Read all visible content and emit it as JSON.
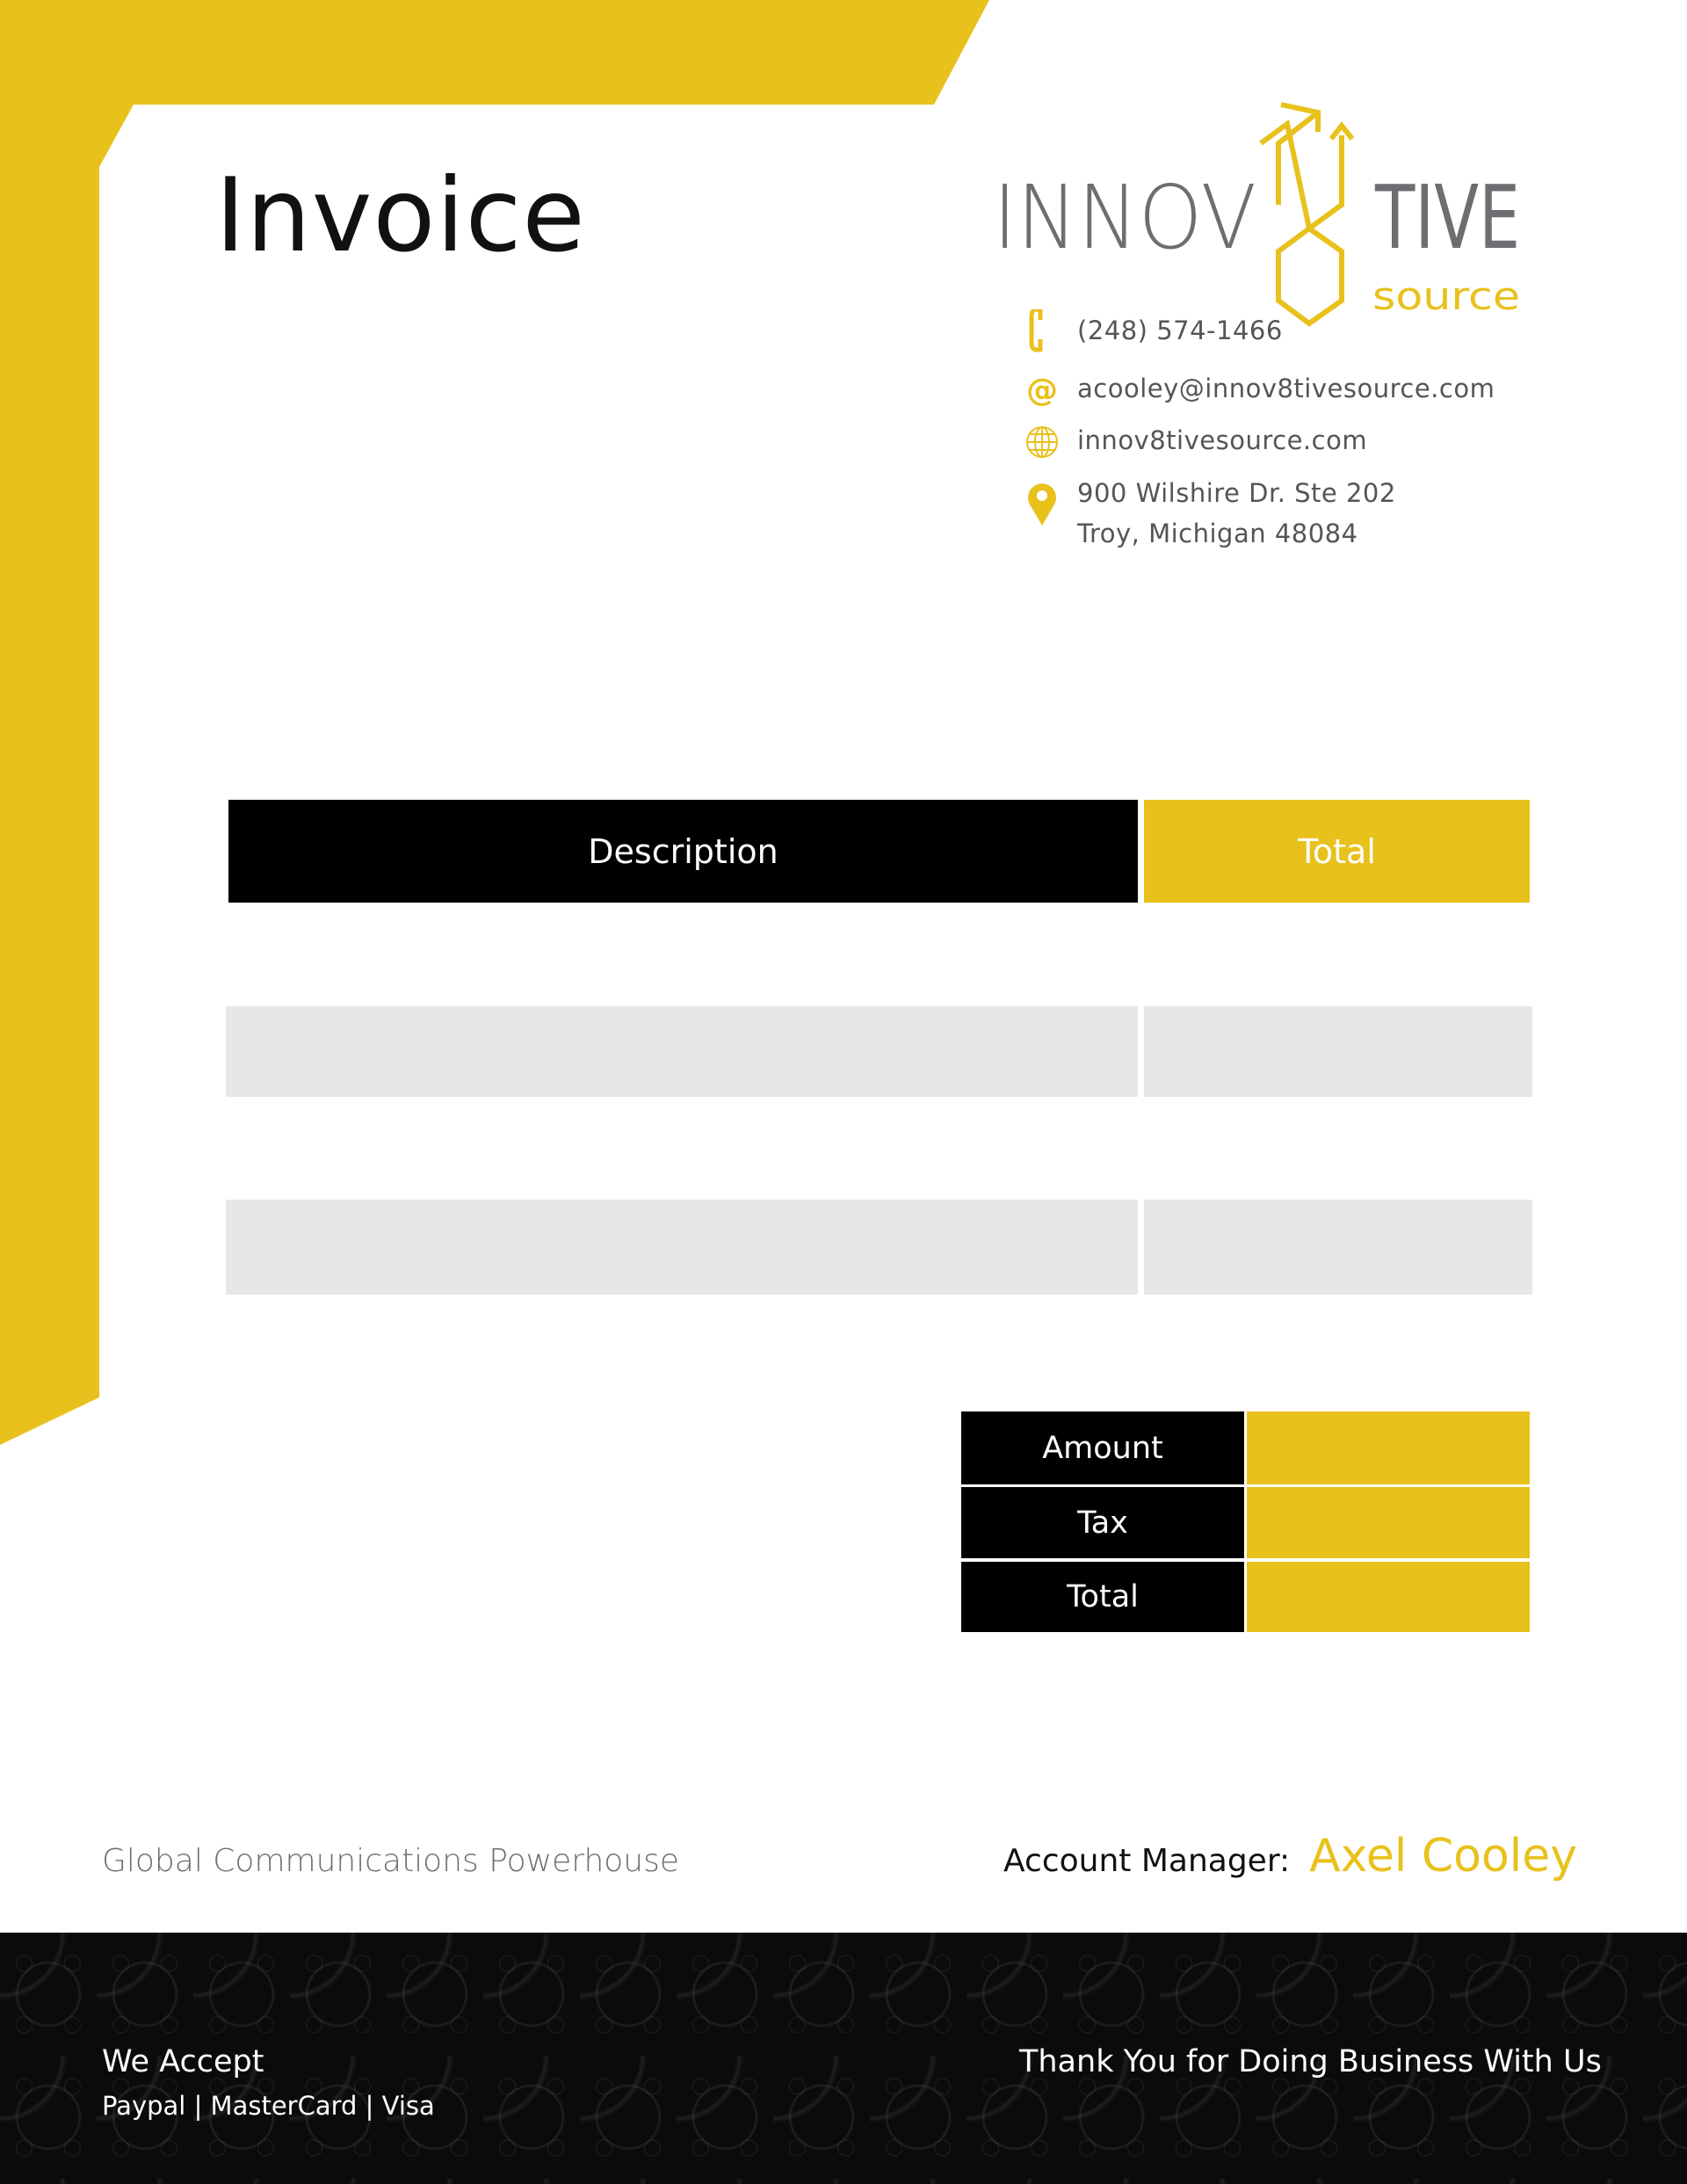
{
  "colors": {
    "accent": "#e8c11c",
    "dark": "#000000",
    "row_fill": "#e6e7e8",
    "text_grey": "#555555"
  },
  "header": {
    "title": "Invoice"
  },
  "logo": {
    "main_left": "INNOV",
    "main_right": "TIVE",
    "sub": "source"
  },
  "contact": {
    "phone": {
      "icon": "phone-icon",
      "text": "(248) 574-1466"
    },
    "email": {
      "icon": "at-icon",
      "text": "acooley@innov8tivesource.com"
    },
    "website": {
      "icon": "globe-icon",
      "text": "innov8tivesource.com"
    },
    "address": {
      "icon": "location-pin-icon",
      "line1": "900 Wilshire Dr. Ste 202",
      "line2": "Troy, Michigan 48084"
    }
  },
  "table": {
    "headers": {
      "description": "Description",
      "total": "Total"
    },
    "rows": [
      {
        "description": "",
        "total": ""
      },
      {
        "description": "",
        "total": ""
      }
    ]
  },
  "summary": {
    "rows": [
      {
        "label": "Amount",
        "value": ""
      },
      {
        "label": "Tax",
        "value": ""
      },
      {
        "label": "Total",
        "value": ""
      }
    ]
  },
  "tagline": "Global Communications Powerhouse",
  "account_manager": {
    "label": "Account Manager:",
    "name": "Axel Cooley"
  },
  "footer": {
    "accept_title": "We Accept",
    "accept_methods": "Paypal | MasterCard | Visa",
    "thanks": "Thank You for Doing Business With Us"
  }
}
